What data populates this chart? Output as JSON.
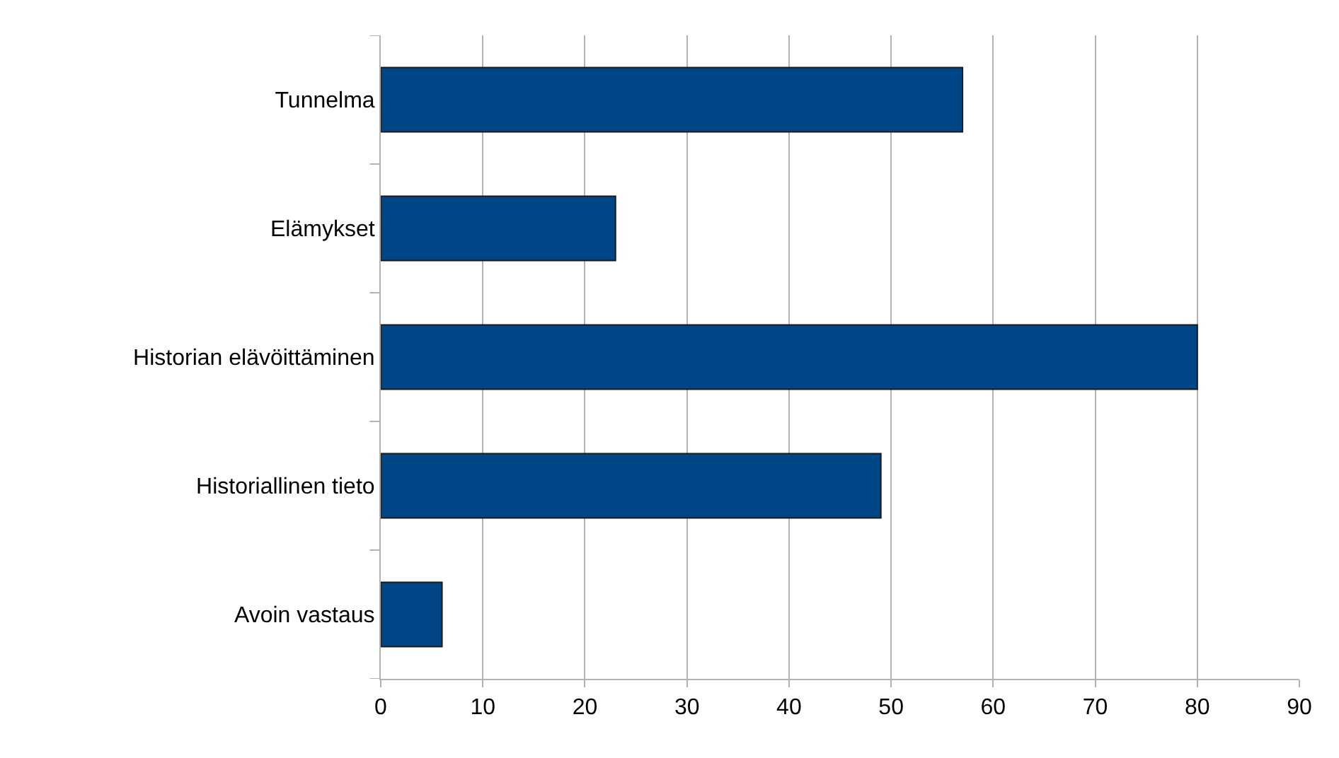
{
  "chart_data": {
    "type": "bar",
    "orientation": "horizontal",
    "categories": [
      "Tunnelma",
      "Elämykset",
      "Historian elävöittäminen",
      "Historiallinen tieto",
      "Avoin vastaus"
    ],
    "values": [
      57,
      23,
      80,
      49,
      6
    ],
    "color": "#004586",
    "xlim": [
      0,
      90
    ],
    "xticks": [
      0,
      10,
      20,
      30,
      40,
      50,
      60,
      70,
      80,
      90
    ],
    "grid": "x"
  }
}
